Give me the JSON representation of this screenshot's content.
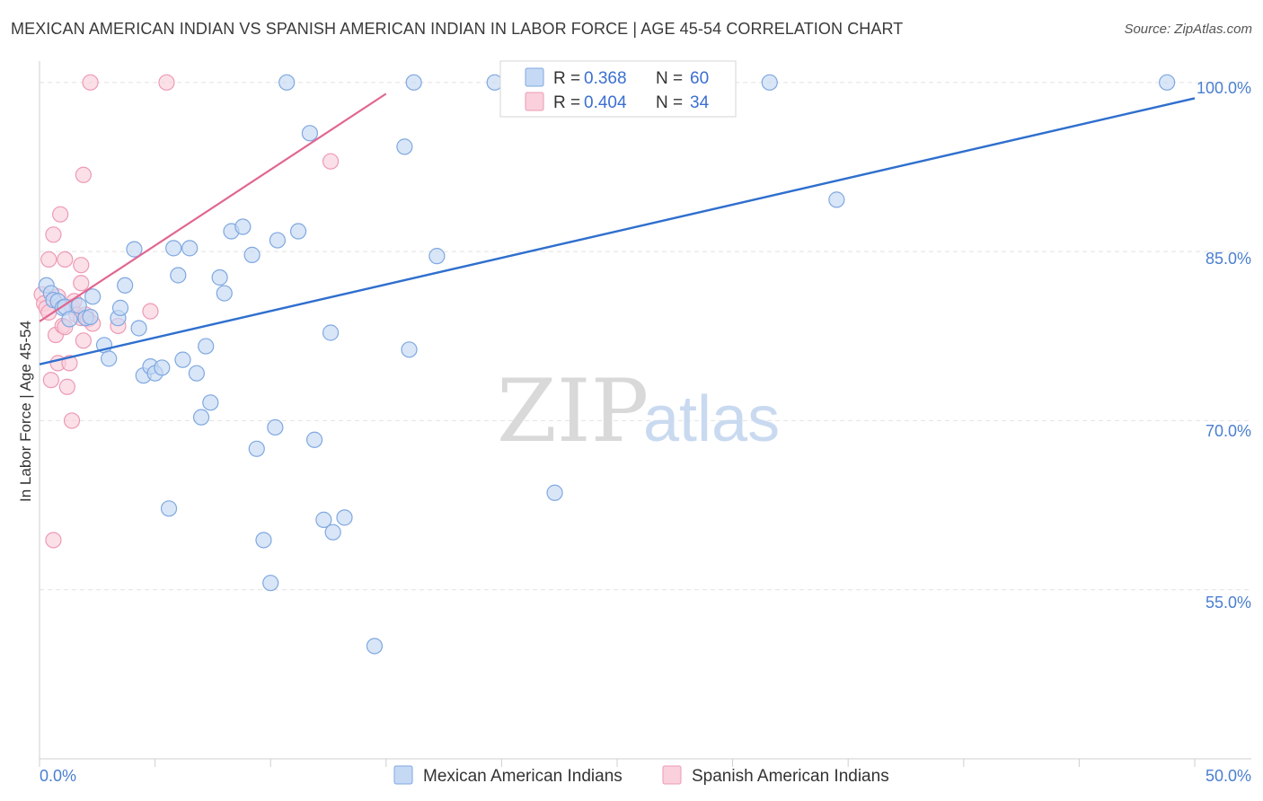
{
  "title": "MEXICAN AMERICAN INDIAN VS SPANISH AMERICAN INDIAN IN LABOR FORCE | AGE 45-54 CORRELATION CHART",
  "source": "Source: ZipAtlas.com",
  "watermark": {
    "zip": "ZIP",
    "atlas": "atlas"
  },
  "colors": {
    "blue_fill": "#c5d9f5",
    "blue_stroke": "#7fa8e0",
    "blue_line": "#2f6fce",
    "pink_fill": "#f9d0dc",
    "pink_stroke": "#ee9ab4",
    "pink_line": "#e06790",
    "grid": "#e2e2e2",
    "axis_label": "#4a7fd0"
  },
  "legend": {
    "rows": [
      {
        "r_label": "R =",
        "r_value": "0.368",
        "n_label": "N =",
        "n_value": "60"
      },
      {
        "r_label": "R =",
        "r_value": "0.404",
        "n_label": "N =",
        "n_value": "34"
      }
    ]
  },
  "bottom_legend": [
    "Mexican American Indians",
    "Spanish American Indians"
  ],
  "chart_data": {
    "type": "scatter",
    "title": "MEXICAN AMERICAN INDIAN VS SPANISH AMERICAN INDIAN IN LABOR FORCE | AGE 45-54 CORRELATION CHART",
    "xlabel": "",
    "ylabel": "In Labor Force | Age 45-54",
    "xlim": [
      0,
      50
    ],
    "ylim": [
      40,
      101.5
    ],
    "x_ticks": [
      0,
      50
    ],
    "x_tick_labels": [
      "0.0%",
      "50.0%"
    ],
    "y_ticks": [
      55,
      70,
      85,
      100
    ],
    "y_tick_labels": [
      "55.0%",
      "70.0%",
      "85.0%",
      "100.0%"
    ],
    "grid": true,
    "legend_position": "top-center",
    "series": [
      {
        "name": "Mexican American Indians",
        "color": "#7fa8e0",
        "r": 0.368,
        "n": 60,
        "trend": [
          [
            0,
            75.0
          ],
          [
            50,
            98.6
          ]
        ],
        "points": [
          [
            0.3,
            82.0
          ],
          [
            0.5,
            81.3
          ],
          [
            0.6,
            80.7
          ],
          [
            0.8,
            80.6
          ],
          [
            1.0,
            80.0
          ],
          [
            1.1,
            80.1
          ],
          [
            1.3,
            79.0
          ],
          [
            1.7,
            80.2
          ],
          [
            2.0,
            79.1
          ],
          [
            2.2,
            79.2
          ],
          [
            2.3,
            81.0
          ],
          [
            2.8,
            76.7
          ],
          [
            3.0,
            75.5
          ],
          [
            3.4,
            79.1
          ],
          [
            3.5,
            80.0
          ],
          [
            3.7,
            82.0
          ],
          [
            4.1,
            85.2
          ],
          [
            4.3,
            78.2
          ],
          [
            4.5,
            74.0
          ],
          [
            4.8,
            74.8
          ],
          [
            5.0,
            74.2
          ],
          [
            5.3,
            74.7
          ],
          [
            5.6,
            62.2
          ],
          [
            5.8,
            85.3
          ],
          [
            6.0,
            82.9
          ],
          [
            6.2,
            75.4
          ],
          [
            6.5,
            85.3
          ],
          [
            6.8,
            74.2
          ],
          [
            7.0,
            70.3
          ],
          [
            7.2,
            76.6
          ],
          [
            7.4,
            71.6
          ],
          [
            7.8,
            82.7
          ],
          [
            8.0,
            81.3
          ],
          [
            8.3,
            86.8
          ],
          [
            8.8,
            87.2
          ],
          [
            9.2,
            84.7
          ],
          [
            9.4,
            67.5
          ],
          [
            9.7,
            59.4
          ],
          [
            10.0,
            55.6
          ],
          [
            10.2,
            69.4
          ],
          [
            10.3,
            86.0
          ],
          [
            10.7,
            100.0
          ],
          [
            11.2,
            86.8
          ],
          [
            11.7,
            95.5
          ],
          [
            11.9,
            68.3
          ],
          [
            12.3,
            61.2
          ],
          [
            12.6,
            77.8
          ],
          [
            12.7,
            60.1
          ],
          [
            13.2,
            61.4
          ],
          [
            14.5,
            50.0
          ],
          [
            15.8,
            94.3
          ],
          [
            16.0,
            76.3
          ],
          [
            16.2,
            100.0
          ],
          [
            17.2,
            84.6
          ],
          [
            19.7,
            100.0
          ],
          [
            22.3,
            63.6
          ],
          [
            26.5,
            100.0
          ],
          [
            31.6,
            100.0
          ],
          [
            34.5,
            89.6
          ],
          [
            48.8,
            100.0
          ]
        ]
      },
      {
        "name": "Spanish American Indians",
        "color": "#ee9ab4",
        "r": 0.404,
        "n": 34,
        "trend": [
          [
            0,
            78.8
          ],
          [
            15.0,
            99.0
          ]
        ],
        "points": [
          [
            0.1,
            81.2
          ],
          [
            0.2,
            80.4
          ],
          [
            0.3,
            80.0
          ],
          [
            0.4,
            79.6
          ],
          [
            0.4,
            84.3
          ],
          [
            0.5,
            73.6
          ],
          [
            0.6,
            86.5
          ],
          [
            0.6,
            59.4
          ],
          [
            0.7,
            77.6
          ],
          [
            0.8,
            75.1
          ],
          [
            0.8,
            81.0
          ],
          [
            0.9,
            88.3
          ],
          [
            1.0,
            78.4
          ],
          [
            1.1,
            84.3
          ],
          [
            1.1,
            78.3
          ],
          [
            1.2,
            73.0
          ],
          [
            1.3,
            75.1
          ],
          [
            1.4,
            80.1
          ],
          [
            1.4,
            70.0
          ],
          [
            1.5,
            80.6
          ],
          [
            1.6,
            79.4
          ],
          [
            1.8,
            83.8
          ],
          [
            1.8,
            82.2
          ],
          [
            1.8,
            79.1
          ],
          [
            1.9,
            91.8
          ],
          [
            1.9,
            77.1
          ],
          [
            2.0,
            79.4
          ],
          [
            2.1,
            79.0
          ],
          [
            2.2,
            100.0
          ],
          [
            2.3,
            78.6
          ],
          [
            3.4,
            78.4
          ],
          [
            4.8,
            79.7
          ],
          [
            5.5,
            100.0
          ],
          [
            12.6,
            93.0
          ]
        ]
      }
    ]
  }
}
